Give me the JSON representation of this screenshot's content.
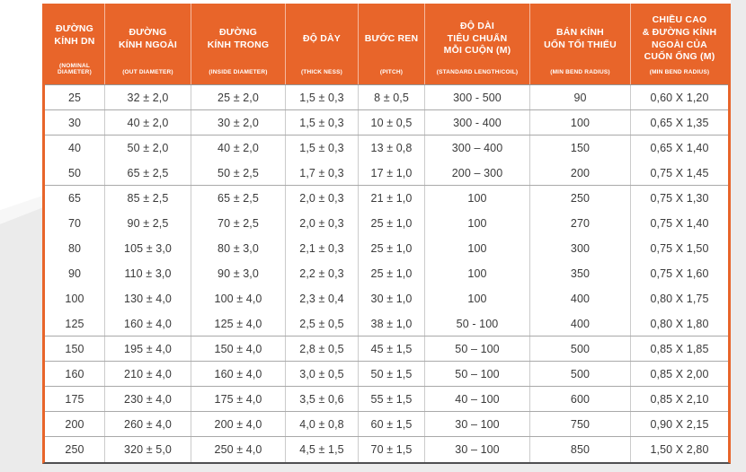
{
  "colors": {
    "accent_orange": "#E8652A",
    "header_text": "#FFFFFF",
    "body_text": "#3A3A3A",
    "grid_line": "#CBCBCB",
    "row_rule": "#A9A9A9",
    "table_bottom_border": "#4F4F51",
    "page_margin_gray": "#ECECEC"
  },
  "table": {
    "columns": [
      {
        "title": "ĐƯỜNG\nKÍNH DN",
        "subtitle": "(NOMINAL DIAMETER)"
      },
      {
        "title": "ĐƯỜNG\nKÍNH NGOÀI",
        "subtitle": "(OUT DIAMETER)"
      },
      {
        "title": "ĐƯỜNG\nKÍNH TRONG",
        "subtitle": "(INSIDE DIAMETER)"
      },
      {
        "title": "ĐỘ DÀY",
        "subtitle": "(THICK NESS)"
      },
      {
        "title": "BƯỚC REN",
        "subtitle": "(PITCH)"
      },
      {
        "title": "ĐỘ DÀI\nTIÊU CHUẨN\nMỖI CUỘN (M)",
        "subtitle": "(STANDARD LENGTH/COIL)"
      },
      {
        "title": "BÁN KÍNH\nUỐN TỐI THIỂU",
        "subtitle": "(MIN BEND RADIUS)"
      },
      {
        "title": "CHIỀU CAO\n& ĐƯỜNG KÍNH\nNGOÀI CỦA\nCUỐN ỐNG (M)",
        "subtitle": "(MIN BEND RADIUS)"
      }
    ],
    "rows": [
      {
        "cells": [
          "25",
          "32 ± 2,0",
          "25 ± 2,0",
          "1,5 ± 0,3",
          "8 ± 0,5",
          "300 - 500",
          "90",
          "0,60 X 1,20"
        ],
        "rule_after": true
      },
      {
        "cells": [
          "30",
          "40 ± 2,0",
          "30 ± 2,0",
          "1,5 ± 0,3",
          "10 ± 0,5",
          "300 - 400",
          "100",
          "0,65 X 1,35"
        ],
        "rule_after": true
      },
      {
        "cells": [
          "40",
          "50 ± 2,0",
          "40 ± 2,0",
          "1,5 ± 0,3",
          "13 ± 0,8",
          "300 – 400",
          "150",
          "0,65 X 1,40"
        ],
        "rule_after": false
      },
      {
        "cells": [
          "50",
          "65 ± 2,5",
          "50 ± 2,5",
          "1,7 ± 0,3",
          "17 ± 1,0",
          "200 – 300",
          "200",
          "0,75 X 1,45"
        ],
        "rule_after": true
      },
      {
        "cells": [
          "65",
          "85 ± 2,5",
          "65 ± 2,5",
          "2,0 ± 0,3",
          "21 ± 1,0",
          "100",
          "250",
          "0,75 X 1,30"
        ],
        "rule_after": false
      },
      {
        "cells": [
          "70",
          "90 ± 2,5",
          "70 ± 2,5",
          "2,0 ± 0,3",
          "25 ± 1,0",
          "100",
          "270",
          "0,75 X 1,40"
        ],
        "rule_after": false
      },
      {
        "cells": [
          "80",
          "105 ± 3,0",
          "80 ± 3,0",
          "2,1 ± 0,3",
          "25 ± 1,0",
          "100",
          "300",
          "0,75 X 1,50"
        ],
        "rule_after": false
      },
      {
        "cells": [
          "90",
          "110 ± 3,0",
          "90 ± 3,0",
          "2,2 ± 0,3",
          "25 ± 1,0",
          "100",
          "350",
          "0,75 X 1,60"
        ],
        "rule_after": false
      },
      {
        "cells": [
          "100",
          "130 ± 4,0",
          "100 ± 4,0",
          "2,3 ± 0,4",
          "30 ± 1,0",
          "100",
          "400",
          "0,80 X 1,75"
        ],
        "rule_after": false
      },
      {
        "cells": [
          "125",
          "160 ± 4,0",
          "125 ± 4,0",
          "2,5 ± 0,5",
          "38 ± 1,0",
          "50 - 100",
          "400",
          "0,80 X 1,80"
        ],
        "rule_after": true
      },
      {
        "cells": [
          "150",
          "195 ± 4,0",
          "150 ± 4,0",
          "2,8 ± 0,5",
          "45 ± 1,5",
          "50 – 100",
          "500",
          "0,85 X 1,85"
        ],
        "rule_after": true
      },
      {
        "cells": [
          "160",
          "210 ± 4,0",
          "160 ± 4,0",
          "3,0 ± 0,5",
          "50 ± 1,5",
          "50 – 100",
          "500",
          "0,85 X 2,00"
        ],
        "rule_after": true
      },
      {
        "cells": [
          "175",
          "230 ± 4,0",
          "175 ± 4,0",
          "3,5 ± 0,6",
          "55 ± 1,5",
          "40 – 100",
          "600",
          "0,85 X 2,10"
        ],
        "rule_after": true
      },
      {
        "cells": [
          "200",
          "260 ± 4,0",
          "200 ± 4,0",
          "4,0 ± 0,8",
          "60 ± 1,5",
          "30 – 100",
          "750",
          "0,90 X 2,15"
        ],
        "rule_after": true
      },
      {
        "cells": [
          "250",
          "320 ± 5,0",
          "250 ± 4,0",
          "4,5 ± 1,5",
          "70 ± 1,5",
          "30 – 100",
          "850",
          "1,50 X 2,80"
        ],
        "rule_after": false
      }
    ]
  }
}
